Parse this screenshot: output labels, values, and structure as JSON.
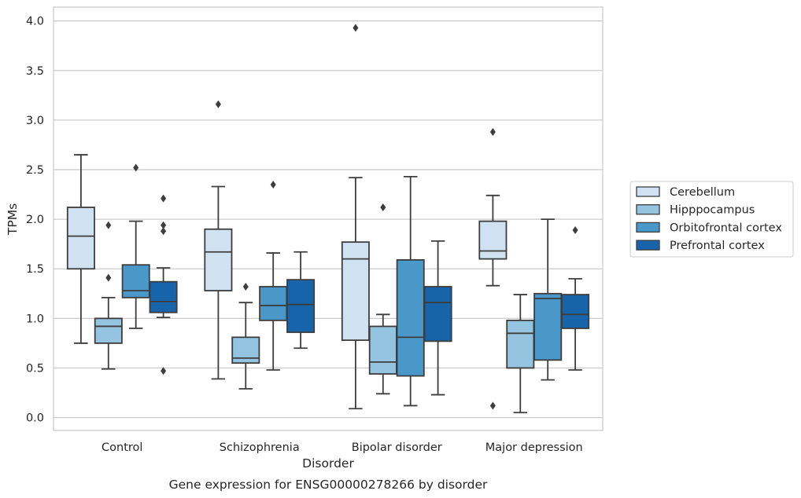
{
  "chart_data": {
    "type": "box",
    "title": "Gene expression for ENSG00000278266 by disorder",
    "xlabel": "Disorder",
    "ylabel": "TPMs",
    "ylim": [
      -0.13,
      4.14
    ],
    "yticks": [
      "0.0",
      "0.5",
      "1.0",
      "1.5",
      "2.0",
      "2.5",
      "3.0",
      "3.5",
      "4.0"
    ],
    "grid": "horizontal",
    "legend_position": "right",
    "categories": [
      "Control",
      "Schizophrenia",
      "Bipolar disorder",
      "Major depression"
    ],
    "series": [
      {
        "name": "Cerebellum",
        "color": "#d0e1f2",
        "boxes": [
          {
            "whislo": 0.75,
            "q1": 1.5,
            "med": 1.83,
            "q3": 2.12,
            "whishi": 2.65,
            "fliers": []
          },
          {
            "whislo": 0.39,
            "q1": 1.28,
            "med": 1.67,
            "q3": 1.9,
            "whishi": 2.33,
            "fliers": [
              3.16
            ]
          },
          {
            "whislo": 0.09,
            "q1": 0.78,
            "med": 1.6,
            "q3": 1.77,
            "whishi": 2.42,
            "fliers": [
              3.93
            ]
          },
          {
            "whislo": 1.33,
            "q1": 1.6,
            "med": 1.68,
            "q3": 1.98,
            "whishi": 2.24,
            "fliers": [
              2.88,
              0.12
            ]
          }
        ]
      },
      {
        "name": "Hipppocampus",
        "color": "#94c4df",
        "boxes": [
          {
            "whislo": 0.49,
            "q1": 0.75,
            "med": 0.92,
            "q3": 1.0,
            "whishi": 1.21,
            "fliers": [
              1.94,
              1.41
            ]
          },
          {
            "whislo": 0.29,
            "q1": 0.55,
            "med": 0.6,
            "q3": 0.81,
            "whishi": 1.16,
            "fliers": [
              1.32
            ]
          },
          {
            "whislo": 0.24,
            "q1": 0.44,
            "med": 0.56,
            "q3": 0.92,
            "whishi": 1.04,
            "fliers": [
              2.12
            ]
          },
          {
            "whislo": 0.05,
            "q1": 0.5,
            "med": 0.85,
            "q3": 0.98,
            "whishi": 1.24,
            "fliers": []
          }
        ]
      },
      {
        "name": "Orbitofrontal cortex",
        "color": "#4a98c9",
        "boxes": [
          {
            "whislo": 0.9,
            "q1": 1.21,
            "med": 1.28,
            "q3": 1.54,
            "whishi": 1.98,
            "fliers": [
              2.52
            ]
          },
          {
            "whislo": 0.48,
            "q1": 0.98,
            "med": 1.13,
            "q3": 1.32,
            "whishi": 1.66,
            "fliers": [
              2.35
            ]
          },
          {
            "whislo": 0.12,
            "q1": 0.42,
            "med": 0.81,
            "q3": 1.59,
            "whishi": 2.43,
            "fliers": []
          },
          {
            "whislo": 0.38,
            "q1": 0.58,
            "med": 1.2,
            "q3": 1.25,
            "whishi": 2.0,
            "fliers": []
          }
        ]
      },
      {
        "name": "Prefrontal cortex",
        "color": "#1764ab",
        "boxes": [
          {
            "whislo": 1.01,
            "q1": 1.06,
            "med": 1.17,
            "q3": 1.37,
            "whishi": 1.51,
            "fliers": [
              2.21,
              1.94,
              1.88,
              0.47
            ]
          },
          {
            "whislo": 0.7,
            "q1": 0.86,
            "med": 1.14,
            "q3": 1.39,
            "whishi": 1.67,
            "fliers": []
          },
          {
            "whislo": 0.23,
            "q1": 0.77,
            "med": 1.16,
            "q3": 1.32,
            "whishi": 1.78,
            "fliers": []
          },
          {
            "whislo": 0.48,
            "q1": 0.9,
            "med": 1.04,
            "q3": 1.24,
            "whishi": 1.4,
            "fliers": [
              1.89
            ]
          }
        ]
      }
    ]
  }
}
